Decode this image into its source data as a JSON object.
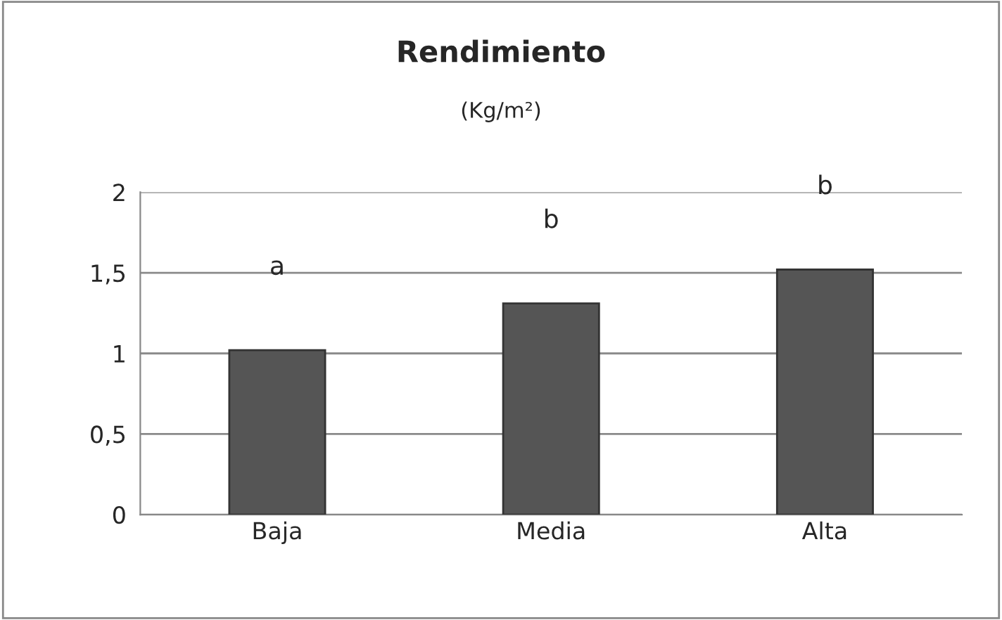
{
  "chart_data": {
    "type": "bar",
    "title": "Rendimiento",
    "subtitle": "(Kg/m²)",
    "categories": [
      "Baja",
      "Media",
      "Alta"
    ],
    "values": [
      1.02,
      1.31,
      1.52
    ],
    "color": "#555555",
    "ylim": [
      0,
      2
    ],
    "yticks": [
      0,
      {
        "value": 0.5,
        "label": "0,5"
      },
      1,
      {
        "value": 1.5,
        "label": "1,5"
      },
      2
    ],
    "grid": "y",
    "legend": false,
    "annotations": [
      "a",
      "b",
      "b"
    ]
  }
}
